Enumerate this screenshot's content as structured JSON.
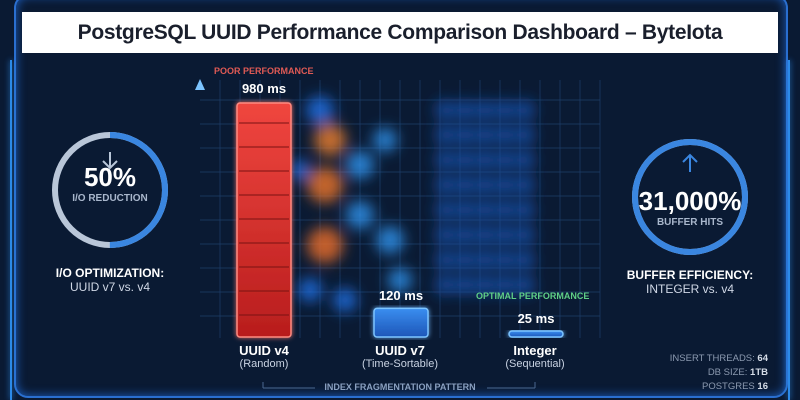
{
  "title": "PostgreSQL UUID Performance Comparison Dashboard – ByteIota",
  "chart_data": {
    "type": "bar",
    "categories": [
      "UUID v4",
      "UUID v7",
      "Integer"
    ],
    "category_subtitles": [
      "(Random)",
      "(Time-Sortable)",
      "(Sequential)"
    ],
    "values": [
      980,
      120,
      25
    ],
    "data_labels": [
      "980 ms",
      "120 ms",
      "25 ms"
    ],
    "unit": "ms",
    "xlabel": "INDEX FRAGMENTATION PATTERN",
    "ylabel": "",
    "annotations": {
      "poor": "POOR PERFORMANCE",
      "optimal": "OPTIMAL PERFORMANCE"
    },
    "grid": true,
    "colors": [
      "#e0332f",
      "#2f7fe0",
      "#2f7fe0"
    ]
  },
  "left_gauge": {
    "icon": "arrow-down-icon",
    "value": "50%",
    "label": "I/O REDUCTION",
    "fill_fraction": 0.5,
    "caption_title": "I/O OPTIMIZATION:",
    "caption_sub": "UUID v7 vs. v4"
  },
  "right_gauge": {
    "icon": "arrow-up-icon",
    "value": "31,000%",
    "label": "BUFFER HITS",
    "fill_fraction": 1.0,
    "caption_title": "BUFFER EFFICIENCY:",
    "caption_sub": "INTEGER vs. v4"
  },
  "specs": [
    {
      "label": "INSERT THREADS:",
      "value": "64"
    },
    {
      "label": "DB SIZE:",
      "value": "1TB"
    },
    {
      "label": "POSTGRES",
      "value": "16"
    }
  ]
}
